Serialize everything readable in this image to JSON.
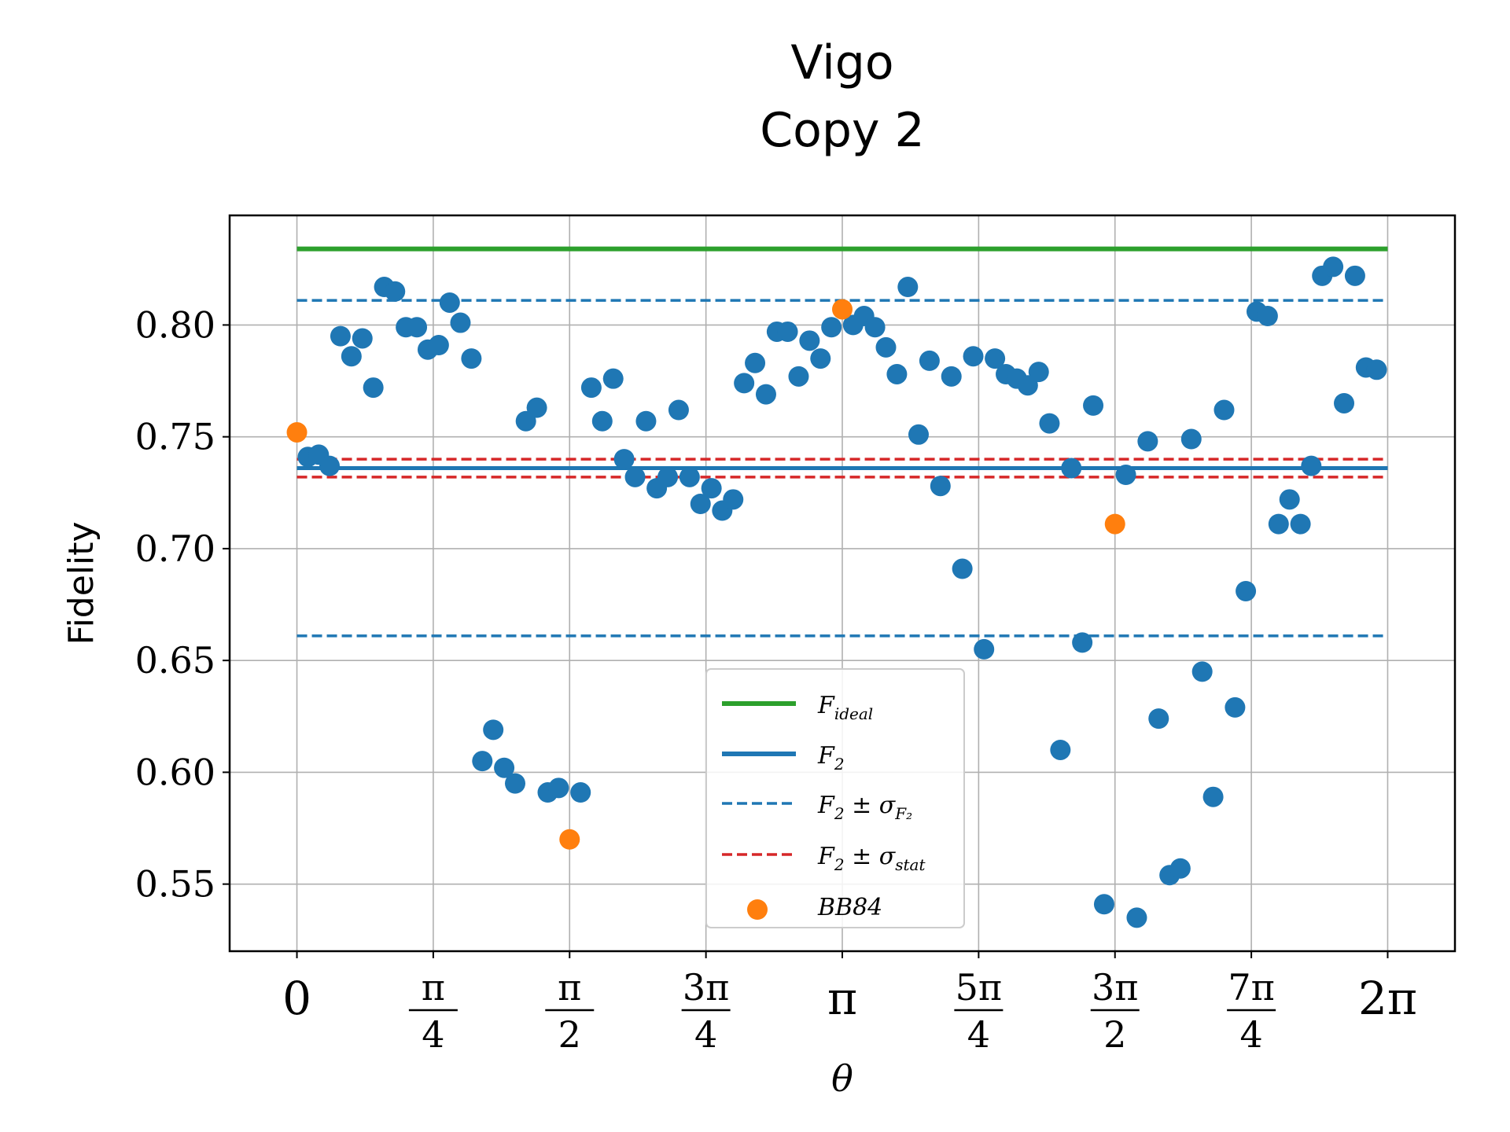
{
  "chart_data": {
    "type": "scatter",
    "title": [
      "Vigo",
      "Copy 2"
    ],
    "xlabel": "θ",
    "ylabel": "Fidelity",
    "xlim": [
      -0.3875,
      6.6707
    ],
    "ylim": [
      0.52,
      0.849
    ],
    "grid": true,
    "legend_position": "lower-center",
    "x_ticks": [
      {
        "value": 0,
        "label": "0"
      },
      {
        "value": 0.7854,
        "num": "π",
        "den": "4"
      },
      {
        "value": 1.5708,
        "num": "π",
        "den": "2"
      },
      {
        "value": 2.3562,
        "num": "3π",
        "den": "4"
      },
      {
        "value": 3.1416,
        "label": "π"
      },
      {
        "value": 3.927,
        "num": "5π",
        "den": "4"
      },
      {
        "value": 4.7124,
        "num": "3π",
        "den": "2"
      },
      {
        "value": 5.4978,
        "num": "7π",
        "den": "4"
      },
      {
        "value": 6.2832,
        "label": "2π"
      }
    ],
    "y_ticks": [
      {
        "value": 0.55,
        "label": "0.55"
      },
      {
        "value": 0.6,
        "label": "0.60"
      },
      {
        "value": 0.65,
        "label": "0.65"
      },
      {
        "value": 0.7,
        "label": "0.70"
      },
      {
        "value": 0.75,
        "label": "0.75"
      },
      {
        "value": 0.8,
        "label": "0.80"
      }
    ],
    "hlines": [
      {
        "key": "F_ideal",
        "y": 0.834,
        "color": "#2ca02c",
        "style": "solid",
        "width": 6
      },
      {
        "key": "F2",
        "y": 0.736,
        "color": "#1f77b4",
        "style": "solid",
        "width": 5
      },
      {
        "key": "F2_sigma_upper",
        "y": 0.811,
        "color": "#1f77b4",
        "style": "dashed",
        "width": 3.5
      },
      {
        "key": "F2_sigma_lower",
        "y": 0.661,
        "color": "#1f77b4",
        "style": "dashed",
        "width": 3.5
      },
      {
        "key": "stat_upper",
        "y": 0.74,
        "color": "#d62728",
        "style": "dashed",
        "width": 3.5
      },
      {
        "key": "stat_lower",
        "y": 0.732,
        "color": "#d62728",
        "style": "dashed",
        "width": 3.5
      }
    ],
    "hline_x_range": [
      0,
      6.2832
    ],
    "series": [
      {
        "key": "points",
        "color": "#1f77b4",
        "points": [
          [
            0.063,
            0.741
          ],
          [
            0.126,
            0.742
          ],
          [
            0.188,
            0.737
          ],
          [
            0.251,
            0.795
          ],
          [
            0.314,
            0.786
          ],
          [
            0.377,
            0.794
          ],
          [
            0.44,
            0.772
          ],
          [
            0.503,
            0.817
          ],
          [
            0.565,
            0.815
          ],
          [
            0.628,
            0.799
          ],
          [
            0.691,
            0.799
          ],
          [
            0.754,
            0.789
          ],
          [
            0.817,
            0.791
          ],
          [
            0.88,
            0.81
          ],
          [
            0.942,
            0.801
          ],
          [
            1.005,
            0.785
          ],
          [
            1.068,
            0.605
          ],
          [
            1.131,
            0.619
          ],
          [
            1.194,
            0.602
          ],
          [
            1.257,
            0.595
          ],
          [
            1.319,
            0.757
          ],
          [
            1.382,
            0.763
          ],
          [
            1.445,
            0.591
          ],
          [
            1.508,
            0.593
          ],
          [
            1.634,
            0.591
          ],
          [
            1.696,
            0.772
          ],
          [
            1.759,
            0.757
          ],
          [
            1.822,
            0.776
          ],
          [
            1.885,
            0.74
          ],
          [
            1.948,
            0.732
          ],
          [
            2.011,
            0.757
          ],
          [
            2.073,
            0.727
          ],
          [
            2.136,
            0.732
          ],
          [
            2.199,
            0.762
          ],
          [
            2.262,
            0.732
          ],
          [
            2.325,
            0.72
          ],
          [
            2.388,
            0.727
          ],
          [
            2.45,
            0.717
          ],
          [
            2.513,
            0.722
          ],
          [
            2.576,
            0.774
          ],
          [
            2.639,
            0.783
          ],
          [
            2.702,
            0.769
          ],
          [
            2.765,
            0.797
          ],
          [
            2.827,
            0.797
          ],
          [
            2.89,
            0.777
          ],
          [
            2.953,
            0.793
          ],
          [
            3.016,
            0.785
          ],
          [
            3.079,
            0.799
          ],
          [
            3.204,
            0.8
          ],
          [
            3.267,
            0.804
          ],
          [
            3.33,
            0.799
          ],
          [
            3.393,
            0.79
          ],
          [
            3.456,
            0.778
          ],
          [
            3.519,
            0.817
          ],
          [
            3.581,
            0.751
          ],
          [
            3.644,
            0.784
          ],
          [
            3.707,
            0.728
          ],
          [
            3.77,
            0.777
          ],
          [
            3.833,
            0.691
          ],
          [
            3.896,
            0.786
          ],
          [
            3.958,
            0.655
          ],
          [
            4.021,
            0.785
          ],
          [
            4.084,
            0.778
          ],
          [
            4.147,
            0.776
          ],
          [
            4.21,
            0.773
          ],
          [
            4.273,
            0.779
          ],
          [
            4.335,
            0.756
          ],
          [
            4.398,
            0.61
          ],
          [
            4.461,
            0.736
          ],
          [
            4.524,
            0.658
          ],
          [
            4.587,
            0.764
          ],
          [
            4.65,
            0.541
          ],
          [
            4.775,
            0.733
          ],
          [
            4.838,
            0.535
          ],
          [
            4.901,
            0.748
          ],
          [
            4.964,
            0.624
          ],
          [
            5.027,
            0.554
          ],
          [
            5.089,
            0.557
          ],
          [
            5.152,
            0.749
          ],
          [
            5.215,
            0.645
          ],
          [
            5.278,
            0.589
          ],
          [
            5.341,
            0.762
          ],
          [
            5.404,
            0.629
          ],
          [
            5.466,
            0.681
          ],
          [
            5.529,
            0.806
          ],
          [
            5.592,
            0.804
          ],
          [
            5.655,
            0.711
          ],
          [
            5.718,
            0.722
          ],
          [
            5.781,
            0.711
          ],
          [
            5.843,
            0.737
          ],
          [
            5.906,
            0.822
          ],
          [
            5.969,
            0.826
          ],
          [
            6.032,
            0.765
          ],
          [
            6.095,
            0.822
          ],
          [
            6.158,
            0.781
          ],
          [
            6.22,
            0.78
          ]
        ]
      },
      {
        "key": "BB84",
        "color": "#ff7f0e",
        "points": [
          [
            0,
            0.752
          ],
          [
            1.5708,
            0.57
          ],
          [
            3.1416,
            0.807
          ],
          [
            4.7124,
            0.711
          ]
        ]
      }
    ],
    "legend": [
      {
        "key": "F_ideal",
        "kind": "line",
        "color": "#2ca02c",
        "style": "solid",
        "main": "F",
        "sub": "ideal",
        "rest": ""
      },
      {
        "key": "F2",
        "kind": "line",
        "color": "#1f77b4",
        "style": "solid",
        "main": "F",
        "sub": "2",
        "rest": ""
      },
      {
        "key": "F2_sigma",
        "kind": "line",
        "color": "#1f77b4",
        "style": "dashed",
        "main": "F",
        "sub": "2",
        "rest": " ± σ",
        "sub2": "F₂"
      },
      {
        "key": "F2_stat",
        "kind": "line",
        "color": "#d62728",
        "style": "dashed",
        "main": "F",
        "sub": "2",
        "rest": " ± σ",
        "sub2": "stat"
      },
      {
        "key": "BB84",
        "kind": "marker",
        "color": "#ff7f0e",
        "main": "BB84",
        "sub": "",
        "rest": ""
      }
    ]
  }
}
